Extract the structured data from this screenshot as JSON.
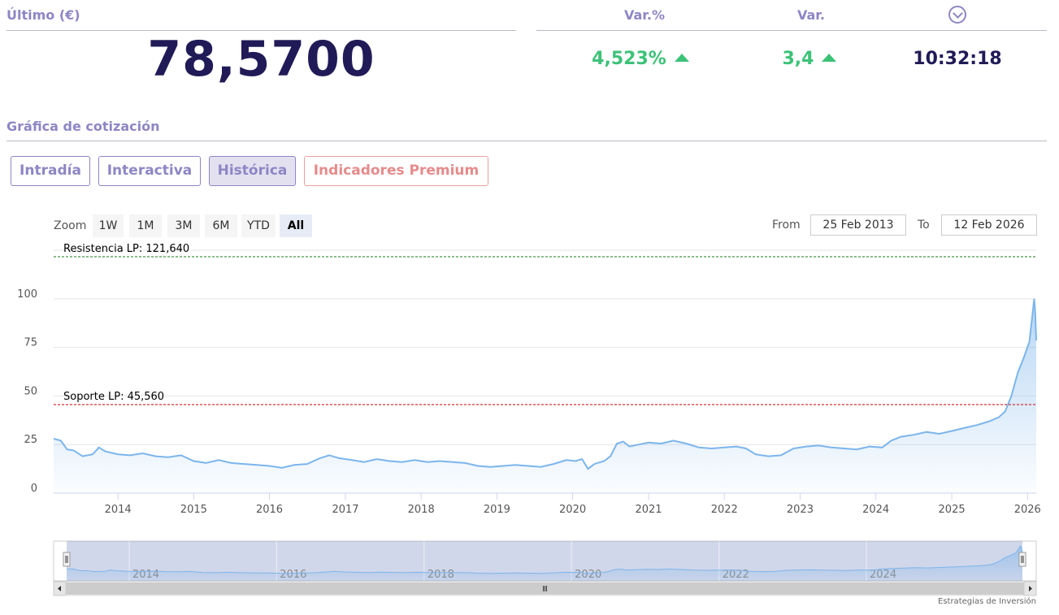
{
  "header": {
    "last_label": "Último (€)",
    "last_value": "78,5700",
    "var_pct_label": "Var.%",
    "var_pct_value": "4,523%",
    "var_label": "Var.",
    "var_value": "3,4",
    "time_value": "10:32:18",
    "expand_icon": "chevron-down-circle-icon",
    "up_icon": "triangle-up-icon",
    "up_color": "#3cc277"
  },
  "section_title": "Gráfica de cotización",
  "tabs": [
    {
      "label": "Intradía",
      "active": false
    },
    {
      "label": "Interactiva",
      "active": false
    },
    {
      "label": "Histórica",
      "active": true
    },
    {
      "label": "Indicadores Premium",
      "active": false
    }
  ],
  "toolbar": {
    "zoom_label": "Zoom",
    "zoom_buttons": [
      "1W",
      "1M",
      "3M",
      "6M",
      "YTD",
      "All"
    ],
    "zoom_active": "All",
    "from_label": "From",
    "from_value": "25 Feb 2013",
    "to_label": "To",
    "to_value": "12 Feb 2026"
  },
  "credit": "Estrategias de Inversión",
  "chart_data": {
    "type": "area",
    "x_type": "date",
    "xlim": [
      "2013-02-25",
      "2026-02-12"
    ],
    "ylim": [
      0,
      125
    ],
    "y_ticks": [
      0,
      25,
      50,
      75,
      100
    ],
    "x_tick_labels": [
      "2014",
      "2015",
      "2016",
      "2017",
      "2018",
      "2019",
      "2020",
      "2021",
      "2022",
      "2023",
      "2024",
      "2025",
      "2026"
    ],
    "navigator_tick_labels": [
      "2014",
      "2016",
      "2018",
      "2020",
      "2022",
      "2024"
    ],
    "grid": true,
    "legend": "none",
    "series_color": "#7cb5ec",
    "lines": [
      {
        "label": "Resistencia LP: 121,640",
        "value": 121.64,
        "color": "#1a7a1a"
      },
      {
        "label": "Soporte LP: 45,560",
        "value": 45.56,
        "color": "#cc0000"
      }
    ],
    "series": [
      {
        "points": [
          [
            "2013-02-25",
            28
          ],
          [
            "2013-04-01",
            27
          ],
          [
            "2013-05-01",
            22.5
          ],
          [
            "2013-06-01",
            22
          ],
          [
            "2013-07-15",
            19
          ],
          [
            "2013-09-01",
            20
          ],
          [
            "2013-10-01",
            23.5
          ],
          [
            "2013-11-01",
            21.5
          ],
          [
            "2014-01-01",
            20
          ],
          [
            "2014-03-01",
            19.5
          ],
          [
            "2014-05-01",
            20.5
          ],
          [
            "2014-07-01",
            19
          ],
          [
            "2014-09-01",
            18.5
          ],
          [
            "2014-11-01",
            19.5
          ],
          [
            "2015-01-01",
            16.5
          ],
          [
            "2015-03-01",
            15.5
          ],
          [
            "2015-05-01",
            17
          ],
          [
            "2015-07-01",
            15.5
          ],
          [
            "2015-09-01",
            15
          ],
          [
            "2015-11-01",
            14.5
          ],
          [
            "2016-01-01",
            14
          ],
          [
            "2016-03-01",
            13
          ],
          [
            "2016-05-01",
            14.5
          ],
          [
            "2016-07-01",
            15
          ],
          [
            "2016-09-01",
            18
          ],
          [
            "2016-10-15",
            19.5
          ],
          [
            "2016-12-01",
            18
          ],
          [
            "2017-02-01",
            17
          ],
          [
            "2017-04-01",
            16
          ],
          [
            "2017-06-01",
            17.5
          ],
          [
            "2017-08-01",
            16.5
          ],
          [
            "2017-10-01",
            16
          ],
          [
            "2017-12-01",
            17
          ],
          [
            "2018-02-01",
            16
          ],
          [
            "2018-04-01",
            16.5
          ],
          [
            "2018-06-01",
            16
          ],
          [
            "2018-08-01",
            15.5
          ],
          [
            "2018-10-01",
            14
          ],
          [
            "2018-12-01",
            13.5
          ],
          [
            "2019-02-01",
            14
          ],
          [
            "2019-04-01",
            14.5
          ],
          [
            "2019-06-01",
            14
          ],
          [
            "2019-08-01",
            13.5
          ],
          [
            "2019-10-01",
            15
          ],
          [
            "2019-12-01",
            17
          ],
          [
            "2020-01-15",
            16.5
          ],
          [
            "2020-02-15",
            17.5
          ],
          [
            "2020-03-15",
            12.5
          ],
          [
            "2020-04-15",
            15
          ],
          [
            "2020-06-01",
            16.5
          ],
          [
            "2020-07-01",
            19
          ],
          [
            "2020-08-01",
            25.5
          ],
          [
            "2020-09-01",
            26.5
          ],
          [
            "2020-10-01",
            24
          ],
          [
            "2020-11-15",
            25
          ],
          [
            "2021-01-01",
            26
          ],
          [
            "2021-03-01",
            25.5
          ],
          [
            "2021-05-01",
            27
          ],
          [
            "2021-07-01",
            25.5
          ],
          [
            "2021-09-01",
            23.5
          ],
          [
            "2021-11-01",
            23
          ],
          [
            "2022-01-01",
            23.5
          ],
          [
            "2022-03-01",
            24
          ],
          [
            "2022-04-15",
            23
          ],
          [
            "2022-06-01",
            20
          ],
          [
            "2022-08-01",
            19
          ],
          [
            "2022-10-01",
            19.5
          ],
          [
            "2022-12-01",
            23
          ],
          [
            "2023-02-01",
            24
          ],
          [
            "2023-04-01",
            24.5
          ],
          [
            "2023-06-01",
            23.5
          ],
          [
            "2023-08-01",
            23
          ],
          [
            "2023-10-01",
            22.5
          ],
          [
            "2023-12-01",
            24
          ],
          [
            "2024-02-01",
            23.5
          ],
          [
            "2024-03-15",
            27
          ],
          [
            "2024-05-01",
            29
          ],
          [
            "2024-07-01",
            30
          ],
          [
            "2024-09-01",
            31.5
          ],
          [
            "2024-11-01",
            30.5
          ],
          [
            "2025-01-01",
            32
          ],
          [
            "2025-03-01",
            33.5
          ],
          [
            "2025-05-01",
            35
          ],
          [
            "2025-07-01",
            37
          ],
          [
            "2025-08-15",
            39
          ],
          [
            "2025-09-15",
            42
          ],
          [
            "2025-10-15",
            50
          ],
          [
            "2025-11-15",
            62
          ],
          [
            "2025-12-15",
            70
          ],
          [
            "2026-01-10",
            78
          ],
          [
            "2026-01-25",
            92
          ],
          [
            "2026-02-02",
            100
          ],
          [
            "2026-02-06",
            95
          ],
          [
            "2026-02-12",
            78.57
          ]
        ]
      }
    ]
  }
}
